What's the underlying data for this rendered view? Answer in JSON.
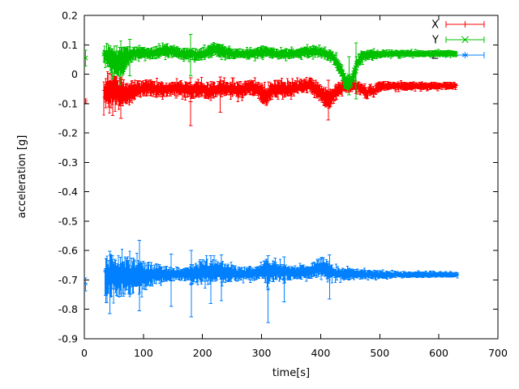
{
  "figure": {
    "background": "#ffffff",
    "axis_color": "#000000"
  },
  "chart_data": {
    "type": "scatter",
    "style": "gnuplot points with error bars",
    "title": "",
    "xlabel": "time[s]",
    "ylabel": "acceleration [g]",
    "xlim": [
      0,
      700
    ],
    "ylim": [
      -0.9,
      0.2
    ],
    "x_ticks": [
      0,
      100,
      200,
      300,
      400,
      500,
      600,
      700
    ],
    "x_tick_labels": [
      "0",
      "100",
      "200",
      "300",
      "400",
      "500",
      "600",
      "700"
    ],
    "y_ticks": [
      0.2,
      0.1,
      0,
      -0.1,
      -0.2,
      -0.3,
      -0.4,
      -0.5,
      -0.6,
      -0.7,
      -0.8,
      -0.9
    ],
    "y_tick_labels": [
      "0.2",
      "0.1",
      "0",
      "-0.1",
      "-0.2",
      "-0.3",
      "-0.4",
      "-0.5",
      "-0.6",
      "-0.7",
      "-0.8",
      "-0.9"
    ],
    "grid": false,
    "legend": {
      "position": "top-right-inside",
      "entries": [
        "X",
        "Y",
        "Z"
      ]
    },
    "series": [
      {
        "name": "X",
        "color": "#ff0000",
        "marker": "plus",
        "summary": "X acceleration: noisy band around -0.05 g from t=33s to t=630s",
        "first_point": {
          "t": 2,
          "y": -0.091,
          "err": [
            -0.098,
            -0.084
          ]
        },
        "range": [
          33,
          630
        ],
        "envelope": [
          [
            33,
            -0.07,
            0.055
          ],
          [
            38,
            -0.05,
            0.06
          ],
          [
            44,
            -0.06,
            0.06
          ],
          [
            50,
            -0.05,
            0.058
          ],
          [
            57,
            -0.068,
            0.055
          ],
          [
            64,
            -0.06,
            0.05
          ],
          [
            72,
            -0.065,
            0.048
          ],
          [
            80,
            -0.058,
            0.042
          ],
          [
            90,
            -0.052,
            0.032
          ],
          [
            100,
            -0.05,
            0.028
          ],
          [
            110,
            -0.045,
            0.028
          ],
          [
            120,
            -0.05,
            0.03
          ],
          [
            130,
            -0.052,
            0.028
          ],
          [
            140,
            -0.05,
            0.026
          ],
          [
            155,
            -0.048,
            0.026
          ],
          [
            170,
            -0.05,
            0.03
          ],
          [
            180,
            -0.055,
            0.035
          ],
          [
            190,
            -0.05,
            0.032
          ],
          [
            200,
            -0.048,
            0.03
          ],
          [
            210,
            -0.06,
            0.035
          ],
          [
            218,
            -0.055,
            0.032
          ],
          [
            228,
            -0.05,
            0.03
          ],
          [
            240,
            -0.048,
            0.028
          ],
          [
            252,
            -0.05,
            0.03
          ],
          [
            262,
            -0.055,
            0.032
          ],
          [
            272,
            -0.05,
            0.028
          ],
          [
            282,
            -0.045,
            0.026
          ],
          [
            292,
            -0.05,
            0.03
          ],
          [
            300,
            -0.065,
            0.035
          ],
          [
            308,
            -0.075,
            0.035
          ],
          [
            315,
            -0.06,
            0.032
          ],
          [
            322,
            -0.05,
            0.03
          ],
          [
            332,
            -0.048,
            0.028
          ],
          [
            342,
            -0.052,
            0.03
          ],
          [
            352,
            -0.05,
            0.028
          ],
          [
            362,
            -0.045,
            0.026
          ],
          [
            372,
            -0.04,
            0.026
          ],
          [
            382,
            -0.035,
            0.028
          ],
          [
            390,
            -0.045,
            0.028
          ],
          [
            398,
            -0.06,
            0.032
          ],
          [
            406,
            -0.075,
            0.035
          ],
          [
            414,
            -0.085,
            0.032
          ],
          [
            422,
            -0.07,
            0.03
          ],
          [
            430,
            -0.05,
            0.026
          ],
          [
            440,
            -0.042,
            0.022
          ],
          [
            452,
            -0.04,
            0.02
          ],
          [
            462,
            -0.042,
            0.02
          ],
          [
            472,
            -0.055,
            0.024
          ],
          [
            478,
            -0.07,
            0.022
          ],
          [
            484,
            -0.05,
            0.02
          ],
          [
            490,
            -0.06,
            0.022
          ],
          [
            496,
            -0.045,
            0.018
          ],
          [
            510,
            -0.04,
            0.016
          ],
          [
            530,
            -0.04,
            0.015
          ],
          [
            560,
            -0.04,
            0.014
          ],
          [
            590,
            -0.04,
            0.013
          ],
          [
            630,
            -0.04,
            0.013
          ]
        ],
        "outlier_bars": [
          [
            48,
            -0.14,
            -0.005
          ],
          [
            62,
            -0.15,
            -0.01
          ],
          [
            180,
            -0.175,
            -0.012
          ],
          [
            230,
            -0.13,
            -0.01
          ],
          [
            413,
            -0.155,
            -0.02
          ]
        ]
      },
      {
        "name": "Y",
        "color": "#00c000",
        "marker": "cross",
        "summary": "Y acceleration: band around +0.07 g with dip to -0.04 g near t=445s",
        "first_point": {
          "t": 2,
          "y": 0.055,
          "err": [
            0.028,
            0.082
          ]
        },
        "range": [
          33,
          630
        ],
        "envelope": [
          [
            33,
            0.065,
            0.04
          ],
          [
            40,
            0.06,
            0.045
          ],
          [
            47,
            0.05,
            0.052
          ],
          [
            55,
            0.04,
            0.06
          ],
          [
            62,
            0.038,
            0.06
          ],
          [
            68,
            0.05,
            0.048
          ],
          [
            75,
            0.062,
            0.032
          ],
          [
            85,
            0.07,
            0.024
          ],
          [
            95,
            0.072,
            0.02
          ],
          [
            110,
            0.07,
            0.02
          ],
          [
            125,
            0.075,
            0.022
          ],
          [
            140,
            0.08,
            0.024
          ],
          [
            152,
            0.078,
            0.022
          ],
          [
            162,
            0.07,
            0.02
          ],
          [
            172,
            0.068,
            0.02
          ],
          [
            182,
            0.07,
            0.022
          ],
          [
            192,
            0.065,
            0.02
          ],
          [
            202,
            0.07,
            0.022
          ],
          [
            212,
            0.078,
            0.025
          ],
          [
            222,
            0.085,
            0.026
          ],
          [
            232,
            0.08,
            0.024
          ],
          [
            242,
            0.072,
            0.02
          ],
          [
            252,
            0.068,
            0.018
          ],
          [
            265,
            0.07,
            0.018
          ],
          [
            278,
            0.068,
            0.018
          ],
          [
            290,
            0.07,
            0.019
          ],
          [
            300,
            0.075,
            0.021
          ],
          [
            308,
            0.08,
            0.022
          ],
          [
            316,
            0.073,
            0.019
          ],
          [
            326,
            0.068,
            0.018
          ],
          [
            338,
            0.068,
            0.018
          ],
          [
            350,
            0.07,
            0.018
          ],
          [
            362,
            0.072,
            0.019
          ],
          [
            374,
            0.075,
            0.02
          ],
          [
            386,
            0.078,
            0.021
          ],
          [
            396,
            0.075,
            0.02
          ],
          [
            406,
            0.07,
            0.019
          ],
          [
            414,
            0.065,
            0.02
          ],
          [
            422,
            0.055,
            0.024
          ],
          [
            430,
            0.03,
            0.028
          ],
          [
            437,
            0.0,
            0.03
          ],
          [
            443,
            -0.025,
            0.028
          ],
          [
            448,
            -0.035,
            0.025
          ],
          [
            453,
            -0.02,
            0.028
          ],
          [
            458,
            0.01,
            0.03
          ],
          [
            464,
            0.045,
            0.028
          ],
          [
            470,
            0.06,
            0.022
          ],
          [
            480,
            0.065,
            0.017
          ],
          [
            495,
            0.068,
            0.015
          ],
          [
            515,
            0.07,
            0.013
          ],
          [
            545,
            0.07,
            0.012
          ],
          [
            580,
            0.07,
            0.011
          ],
          [
            630,
            0.07,
            0.011
          ]
        ],
        "outlier_bars": [
          [
            77,
            -0.005,
            0.118
          ],
          [
            180,
            -0.005,
            0.135
          ],
          [
            448,
            -0.07,
            0.06
          ],
          [
            460,
            -0.084,
            0.106
          ]
        ]
      },
      {
        "name": "Z",
        "color": "#0080ff",
        "marker": "star",
        "summary": "Z acceleration: noisy band around -0.68 g, spread shrinking over time",
        "first_point": {
          "t": 2,
          "y": -0.713,
          "err": [
            -0.737,
            -0.693
          ]
        },
        "range": [
          35,
          632
        ],
        "envelope": [
          [
            35,
            -0.69,
            0.07
          ],
          [
            45,
            -0.685,
            0.075
          ],
          [
            55,
            -0.69,
            0.072
          ],
          [
            65,
            -0.685,
            0.072
          ],
          [
            75,
            -0.69,
            0.07
          ],
          [
            85,
            -0.685,
            0.065
          ],
          [
            95,
            -0.69,
            0.058
          ],
          [
            105,
            -0.685,
            0.048
          ],
          [
            115,
            -0.682,
            0.04
          ],
          [
            125,
            -0.68,
            0.034
          ],
          [
            135,
            -0.678,
            0.028
          ],
          [
            145,
            -0.68,
            0.025
          ],
          [
            158,
            -0.678,
            0.022
          ],
          [
            170,
            -0.68,
            0.025
          ],
          [
            180,
            -0.682,
            0.035
          ],
          [
            190,
            -0.678,
            0.04
          ],
          [
            200,
            -0.67,
            0.045
          ],
          [
            210,
            -0.675,
            0.045
          ],
          [
            220,
            -0.67,
            0.042
          ],
          [
            230,
            -0.672,
            0.04
          ],
          [
            240,
            -0.675,
            0.035
          ],
          [
            252,
            -0.678,
            0.028
          ],
          [
            265,
            -0.68,
            0.024
          ],
          [
            278,
            -0.678,
            0.024
          ],
          [
            290,
            -0.676,
            0.026
          ],
          [
            300,
            -0.67,
            0.035
          ],
          [
            308,
            -0.668,
            0.045
          ],
          [
            316,
            -0.672,
            0.04
          ],
          [
            325,
            -0.67,
            0.035
          ],
          [
            335,
            -0.672,
            0.032
          ],
          [
            345,
            -0.675,
            0.026
          ],
          [
            355,
            -0.676,
            0.024
          ],
          [
            365,
            -0.674,
            0.024
          ],
          [
            375,
            -0.672,
            0.026
          ],
          [
            385,
            -0.67,
            0.028
          ],
          [
            395,
            -0.66,
            0.032
          ],
          [
            403,
            -0.655,
            0.035
          ],
          [
            411,
            -0.665,
            0.033
          ],
          [
            419,
            -0.675,
            0.028
          ],
          [
            428,
            -0.678,
            0.024
          ],
          [
            440,
            -0.68,
            0.022
          ],
          [
            455,
            -0.68,
            0.019
          ],
          [
            470,
            -0.68,
            0.017
          ],
          [
            485,
            -0.681,
            0.015
          ],
          [
            500,
            -0.682,
            0.014
          ],
          [
            520,
            -0.682,
            0.012
          ],
          [
            545,
            -0.682,
            0.011
          ],
          [
            575,
            -0.682,
            0.01
          ],
          [
            605,
            -0.682,
            0.009
          ],
          [
            632,
            -0.682,
            0.009
          ]
        ],
        "outlier_bars": [
          [
            43,
            -0.815,
            -0.602
          ],
          [
            93,
            -0.805,
            -0.565
          ],
          [
            147,
            -0.79,
            -0.612
          ],
          [
            181,
            -0.825,
            -0.6
          ],
          [
            214,
            -0.78,
            -0.618
          ],
          [
            232,
            -0.77,
            -0.615
          ],
          [
            311,
            -0.845,
            -0.618
          ],
          [
            338,
            -0.775,
            -0.622
          ],
          [
            415,
            -0.765,
            -0.615
          ]
        ]
      }
    ]
  }
}
